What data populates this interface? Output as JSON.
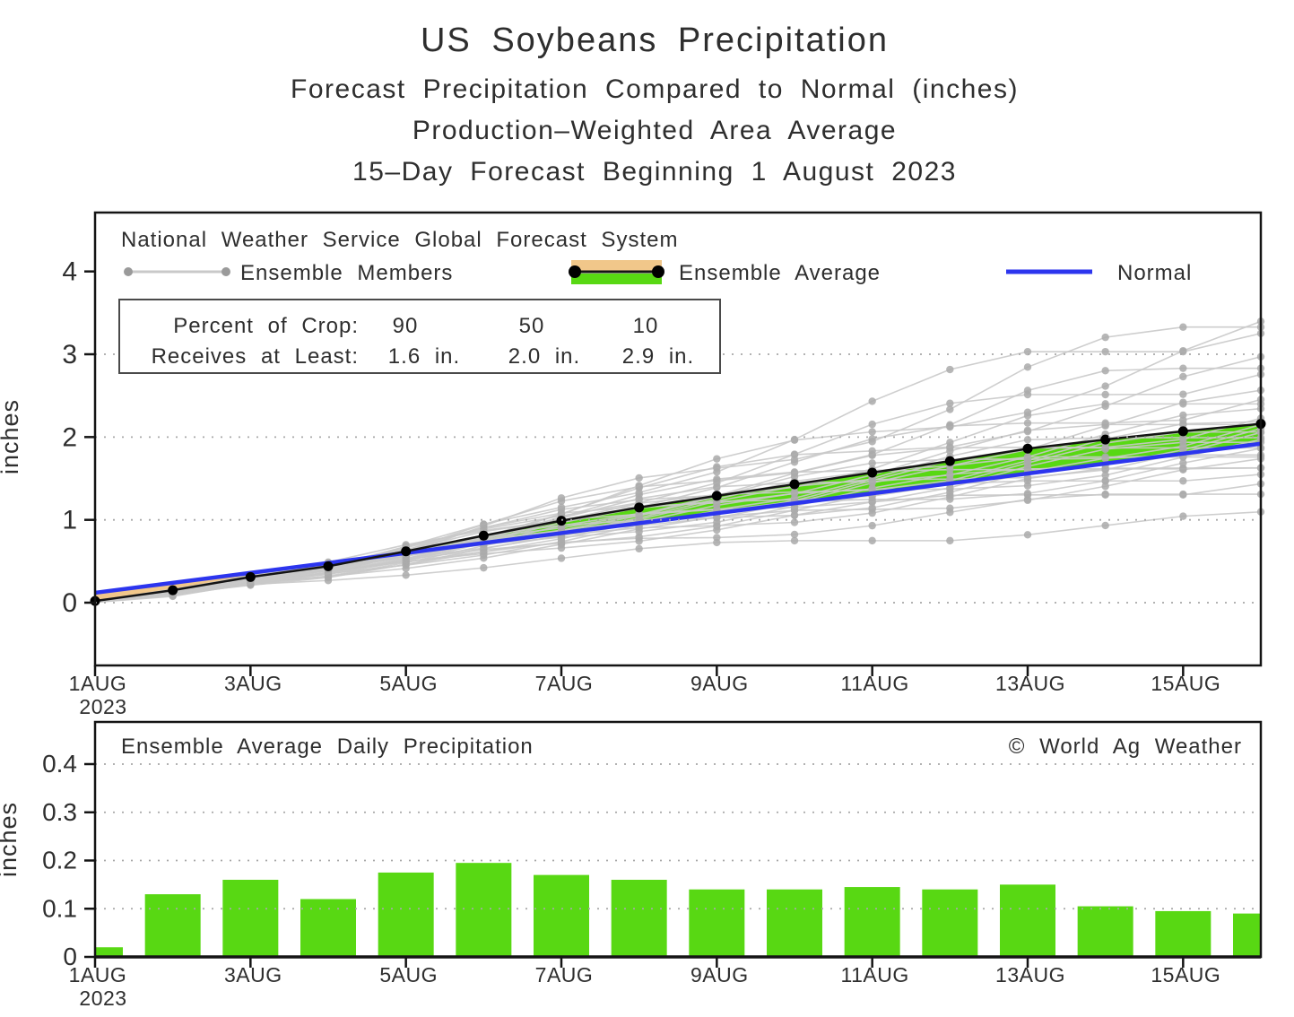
{
  "titles": {
    "line1": "US Soybeans Precipitation",
    "line2": "Forecast Precipitation Compared to Normal (inches)",
    "line3": "Production–Weighted Area Average",
    "line4": "15–Day Forecast Beginning 1 August 2023"
  },
  "colors": {
    "surplus_green": "#58d813",
    "deficit_orange": "#f1c78a",
    "normal_blue": "#2c35ee",
    "member_line": "#c9c9c9",
    "member_dot": "#aaaaaa",
    "average_black": "#141414",
    "grid_gray": "#a8a8a8",
    "frame": "#141414",
    "bar_green": "#58d813",
    "text": "#2e2e2e"
  },
  "chart_data": [
    {
      "type": "line",
      "panel": "cumulative-precipitation-forecast",
      "inner_title": "National Weather Service Global Forecast System",
      "ylabel": "inches",
      "x_tick_labels": [
        "1AUG",
        "3AUG",
        "5AUG",
        "7AUG",
        "9AUG",
        "11AUG",
        "13AUG",
        "15AUG"
      ],
      "x_tick_days": [
        1,
        3,
        5,
        7,
        9,
        11,
        13,
        15
      ],
      "x_start_year": "2023",
      "x_days_total": 16,
      "yticks": [
        0,
        1,
        2,
        3,
        4
      ],
      "grid_values": [
        0,
        1,
        2,
        3
      ],
      "ylim": [
        -0.76,
        4.72
      ],
      "legend": {
        "members": "Ensemble Members",
        "average": "Ensemble Average",
        "normal": "Normal"
      },
      "stats_box": {
        "rows": [
          {
            "label": "Percent of Crop:",
            "values": [
              "90",
              "50",
              "10"
            ]
          },
          {
            "label": "Receives at Least:",
            "values": [
              "1.6 in.",
              "2.0 in.",
              "2.9 in."
            ]
          }
        ]
      },
      "series": {
        "average": {
          "name": "Ensemble Average",
          "values": [
            0.02,
            0.15,
            0.31,
            0.44,
            0.62,
            0.81,
            0.99,
            1.15,
            1.29,
            1.43,
            1.57,
            1.71,
            1.86,
            1.97,
            2.07,
            2.16
          ]
        },
        "normal": {
          "name": "Normal",
          "values": [
            0.12,
            0.24,
            0.36,
            0.48,
            0.6,
            0.72,
            0.84,
            0.96,
            1.08,
            1.2,
            1.32,
            1.44,
            1.56,
            1.68,
            1.8,
            1.92
          ]
        },
        "members": {
          "name": "Ensemble Members",
          "count": 31,
          "finals": [
            1.0,
            1.3,
            1.5,
            1.58,
            1.62,
            1.66,
            1.7,
            1.74,
            1.78,
            1.82,
            1.86,
            1.9,
            1.93,
            1.96,
            1.99,
            2.02,
            2.05,
            2.08,
            2.12,
            2.16,
            2.2,
            2.26,
            2.34,
            2.44,
            2.56,
            2.7,
            2.85,
            2.95,
            3.1,
            3.3,
            3.55
          ],
          "shape": [
            0.009,
            0.069,
            0.144,
            0.204,
            0.287,
            0.375,
            0.458,
            0.532,
            0.597,
            0.662,
            0.727,
            0.792,
            0.861,
            0.912,
            0.958,
            1.0
          ],
          "exponents": [
            0.8,
            0.85,
            0.95,
            1,
            1,
            1,
            1,
            1,
            1,
            1,
            1,
            1,
            1,
            1,
            1,
            1,
            1,
            1,
            1,
            1,
            1,
            1.05,
            1.05,
            1.1,
            1.1,
            1.15,
            1.2,
            1.25,
            1.3,
            1.35,
            1.4
          ],
          "wiggle": {
            "amplitude": 0.1,
            "omega": 0.9,
            "phase_step": 2.0
          }
        }
      }
    },
    {
      "type": "bar",
      "panel": "daily-precipitation",
      "inner_title": "Ensemble Average Daily Precipitation",
      "watermark": "© World Ag Weather",
      "ylabel": "inches",
      "x_tick_labels": [
        "1AUG",
        "3AUG",
        "5AUG",
        "7AUG",
        "9AUG",
        "11AUG",
        "13AUG",
        "15AUG"
      ],
      "x_tick_days": [
        1,
        3,
        5,
        7,
        9,
        11,
        13,
        15
      ],
      "x_start_year": "2023",
      "x_days_total": 16,
      "ytick_labels": [
        "0",
        "0.1",
        "0.2",
        "0.3",
        "0.4"
      ],
      "yticks": [
        0,
        0.1,
        0.2,
        0.3,
        0.4
      ],
      "grid_values": [
        0.1,
        0.2,
        0.3,
        0.4
      ],
      "ylim": [
        0,
        0.49
      ],
      "values": [
        0.02,
        0.13,
        0.16,
        0.12,
        0.175,
        0.195,
        0.17,
        0.16,
        0.14,
        0.14,
        0.145,
        0.14,
        0.15,
        0.105,
        0.095,
        0.09
      ]
    }
  ]
}
